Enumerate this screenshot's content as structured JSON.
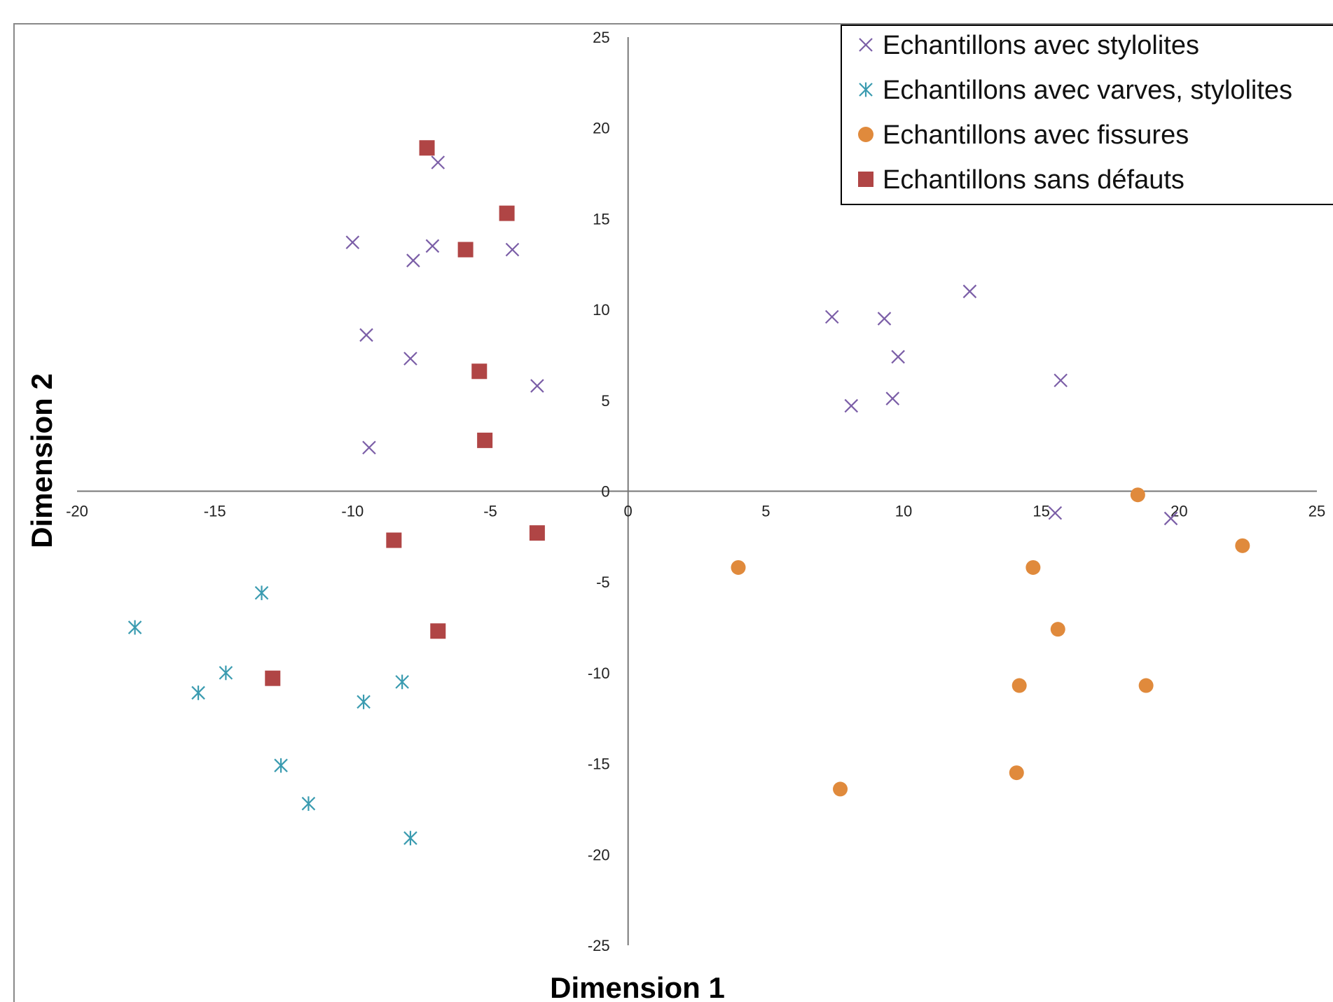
{
  "chart_data": {
    "type": "scatter",
    "title": "",
    "xlabel": "Dimension 1",
    "ylabel": "Dimension 2",
    "xlim": [
      -20,
      25
    ],
    "ylim": [
      -25,
      25
    ],
    "xticks": [
      -20,
      -15,
      -10,
      -5,
      0,
      5,
      10,
      15,
      20,
      25
    ],
    "yticks": [
      -25,
      -20,
      -15,
      -10,
      -5,
      0,
      5,
      10,
      15,
      20,
      25
    ],
    "grid": false,
    "legend_position": "top-right",
    "series": [
      {
        "name": "Echantillons avec stylolites",
        "marker": "x",
        "color": "#7B5EA7",
        "points": [
          [
            -6.9,
            18.1
          ],
          [
            -10.0,
            13.7
          ],
          [
            -7.1,
            13.5
          ],
          [
            -7.8,
            12.7
          ],
          [
            -4.2,
            13.3
          ],
          [
            -9.5,
            8.6
          ],
          [
            -7.9,
            7.3
          ],
          [
            -3.3,
            5.8
          ],
          [
            -9.4,
            2.4
          ],
          [
            7.4,
            9.6
          ],
          [
            9.3,
            9.5
          ],
          [
            12.4,
            11.0
          ],
          [
            9.8,
            7.4
          ],
          [
            8.1,
            4.7
          ],
          [
            9.6,
            5.1
          ],
          [
            15.7,
            6.1
          ],
          [
            15.5,
            -1.2
          ],
          [
            19.7,
            -1.5
          ]
        ]
      },
      {
        "name": "Echantillons avec varves, stylolites",
        "marker": "asterisk",
        "color": "#3A9BB0",
        "points": [
          [
            -13.3,
            -5.6
          ],
          [
            -17.9,
            -7.5
          ],
          [
            -14.6,
            -10.0
          ],
          [
            -15.6,
            -11.1
          ],
          [
            -9.6,
            -11.6
          ],
          [
            -8.2,
            -10.5
          ],
          [
            -12.6,
            -15.1
          ],
          [
            -11.6,
            -17.2
          ],
          [
            -7.9,
            -19.1
          ]
        ]
      },
      {
        "name": "Echantillons avec fissures",
        "marker": "circle",
        "color": "#E08A3C",
        "points": [
          [
            18.5,
            -0.2
          ],
          [
            22.3,
            -3.0
          ],
          [
            4.0,
            -4.2
          ],
          [
            14.7,
            -4.2
          ],
          [
            15.6,
            -7.6
          ],
          [
            14.2,
            -10.7
          ],
          [
            18.8,
            -10.7
          ],
          [
            14.1,
            -15.5
          ],
          [
            7.7,
            -16.4
          ]
        ]
      },
      {
        "name": "Echantillons sans défauts",
        "marker": "square",
        "color": "#B04545",
        "points": [
          [
            -7.3,
            18.9
          ],
          [
            -4.4,
            15.3
          ],
          [
            -5.9,
            13.3
          ],
          [
            -5.4,
            6.6
          ],
          [
            -5.2,
            2.8
          ],
          [
            -8.5,
            -2.7
          ],
          [
            -3.3,
            -2.3
          ],
          [
            -6.9,
            -7.7
          ],
          [
            -12.9,
            -10.3
          ]
        ]
      }
    ]
  }
}
